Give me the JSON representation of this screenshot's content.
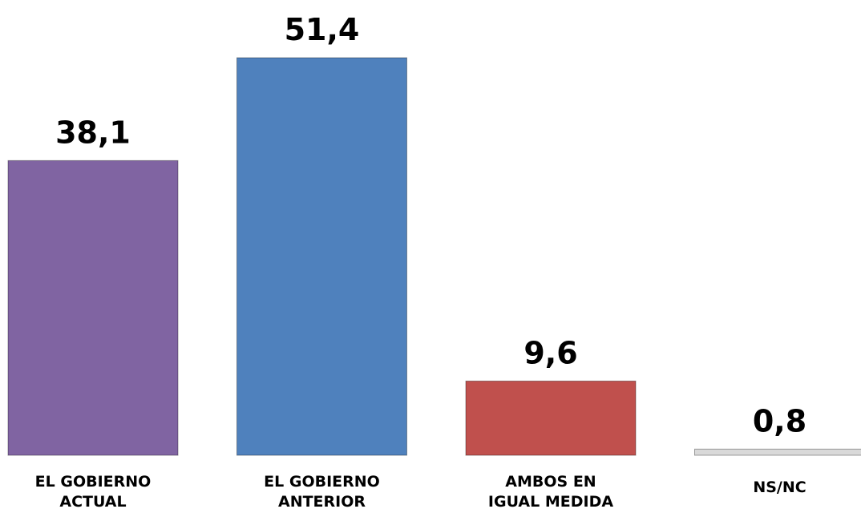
{
  "chart_data": {
    "type": "bar",
    "categories": [
      [
        "EL GOBIERNO",
        "ACTUAL"
      ],
      [
        "EL GOBIERNO",
        "ANTERIOR"
      ],
      [
        "AMBOS EN",
        "IGUAL MEDIDA"
      ],
      [
        "NS/NC"
      ]
    ],
    "values": [
      38.1,
      51.4,
      9.6,
      0.8
    ],
    "value_labels": [
      "38,1",
      "51,4",
      "9,6",
      "0,8"
    ],
    "colors": [
      "#8064a2",
      "#4f81bd",
      "#c0504d",
      "#d9d9d9"
    ]
  }
}
